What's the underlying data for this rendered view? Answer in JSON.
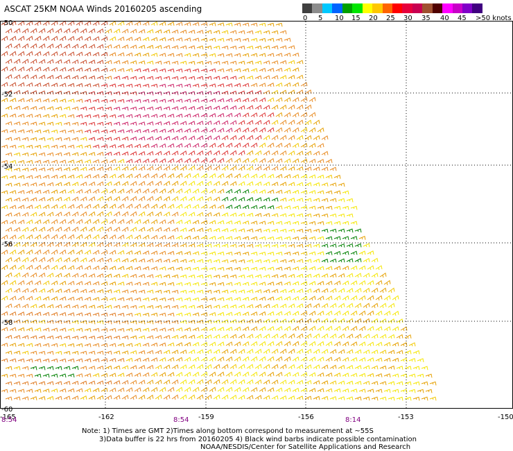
{
  "title": "ASCAT 25KM NOAA Winds 20160205 ascending",
  "legend": {
    "colors": [
      "#404040",
      "#8c8c8c",
      "#00c8ff",
      "#0064ff",
      "#00a000",
      "#00e600",
      "#ffff00",
      "#ffc800",
      "#ff6400",
      "#ff0000",
      "#e6003c",
      "#c80050",
      "#a05030",
      "#500000",
      "#ff00ff",
      "#c800c8",
      "#8000c8",
      "#400080"
    ],
    "ticks": [
      "0",
      "5",
      "10",
      "15",
      "20",
      "25",
      "30",
      "35",
      "40",
      "45",
      ">50 knots"
    ]
  },
  "lat_labels": [
    "-50",
    "-52",
    "-54",
    "-56",
    "-58",
    "-60"
  ],
  "lon_labels": [
    "-165",
    "-162",
    "-159",
    "-156",
    "-153",
    "-150"
  ],
  "time_labels": [
    "8:54",
    "8:54",
    "8:14"
  ],
  "notes": [
    "Note: 1) Times are GMT 2)Times along bottom correspond to measurement at ~55S",
    "3)Data buffer is 22 hrs from 20160205 4) Black wind barbs indicate possible contamination",
    "NOAA/NESDIS/Center for Satellite Applications and Research"
  ]
}
